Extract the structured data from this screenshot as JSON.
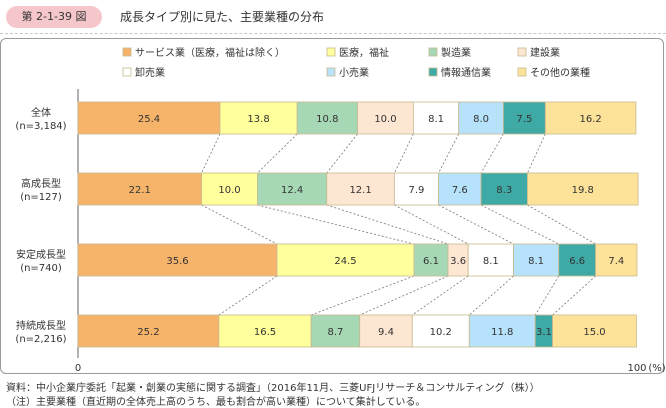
{
  "figure": {
    "number": "第 2-1-39 図",
    "title": "成長タイプ別に見た、主要業種の分布"
  },
  "colors": {
    "badge_bg": "#f5c7cb",
    "frame_border": "#9a9a9a",
    "segment_border": "#c9b98f",
    "series": [
      "#f6b46b",
      "#ffff9b",
      "#a7d8b5",
      "#fde6d2",
      "#ffffff",
      "#b7e2fb",
      "#3fa9a6",
      "#fde29a"
    ]
  },
  "chart_data": {
    "type": "bar",
    "orientation": "horizontal",
    "stacked": true,
    "categories": [
      "全体\n(n=3,184)",
      "高成長型\n(n=127)",
      "安定成長型\n(n=740)",
      "持続成長型\n(n=2,216)"
    ],
    "series": [
      {
        "name": "サービス業（医療，福祉は除く）",
        "values": [
          25.4,
          22.1,
          35.6,
          25.2
        ]
      },
      {
        "name": "医療，福祉",
        "values": [
          13.8,
          10.0,
          24.5,
          16.5
        ]
      },
      {
        "name": "製造業",
        "values": [
          10.8,
          12.4,
          6.1,
          8.7
        ]
      },
      {
        "name": "建設業",
        "values": [
          10.0,
          12.1,
          3.6,
          9.4
        ]
      },
      {
        "name": "卸売業",
        "values": [
          8.1,
          7.9,
          8.1,
          10.2
        ]
      },
      {
        "name": "小売業",
        "values": [
          8.0,
          7.6,
          8.1,
          11.8
        ]
      },
      {
        "name": "情報通信業",
        "values": [
          7.5,
          8.3,
          6.6,
          3.1
        ]
      },
      {
        "name": "その他の業種",
        "values": [
          16.2,
          19.8,
          7.4,
          15.0
        ]
      }
    ],
    "xlim": [
      0,
      100
    ],
    "x_ticks": [
      "0",
      "100"
    ],
    "x_unit": "(%)",
    "legend_position": "top",
    "connector_lines": true
  },
  "notes": [
    "資料：中小企業庁委託「起業・創業の実態に関する調査」（2016年11月、三菱UFJリサーチ＆コンサルティング（株））",
    "（注）主要業種（直近期の全体売上高のうち、最も割合が高い業種）について集計している。"
  ]
}
